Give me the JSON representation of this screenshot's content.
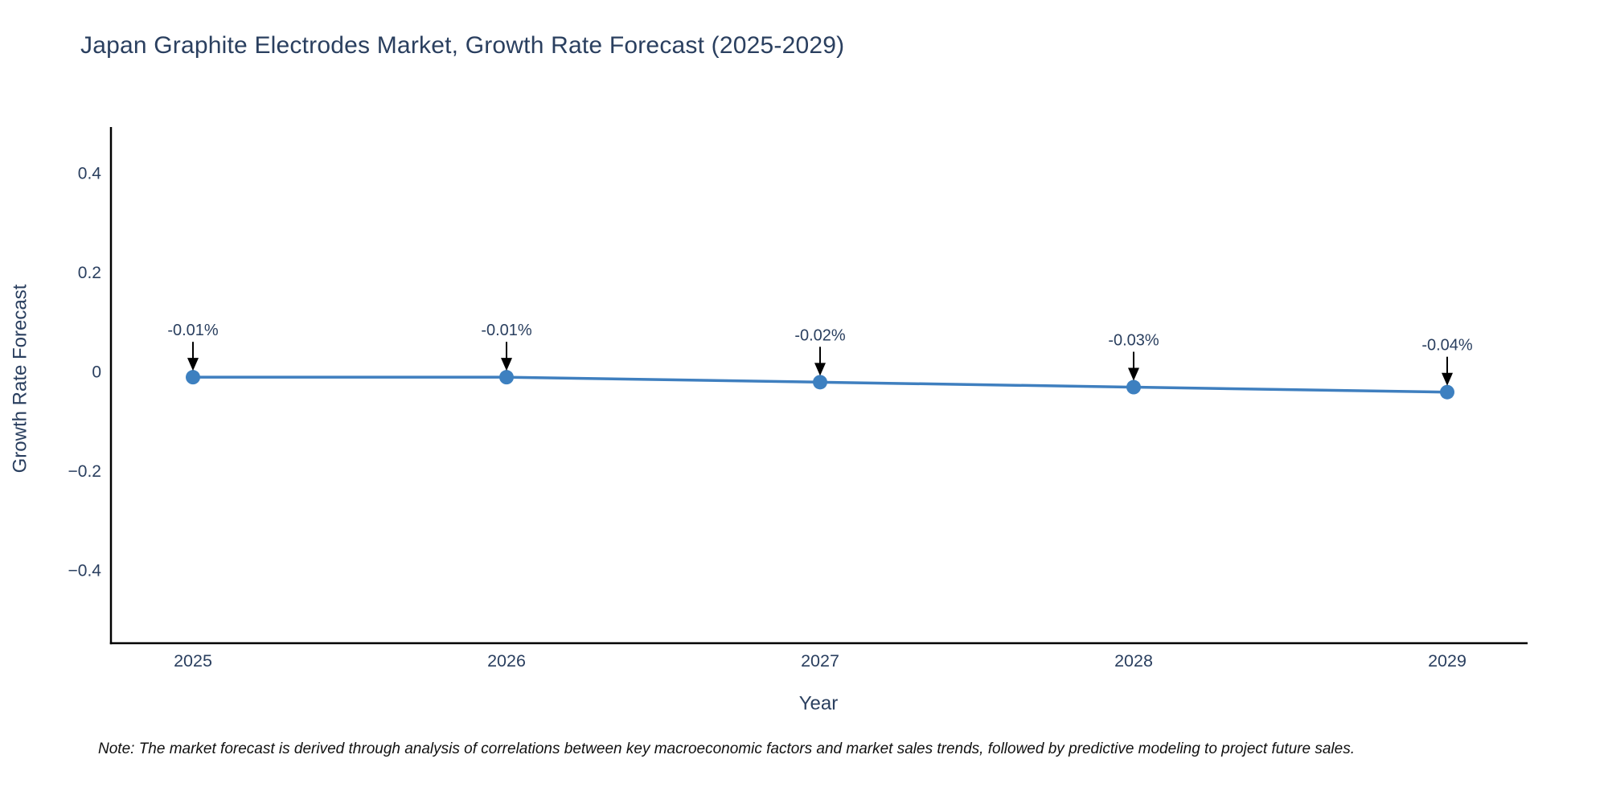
{
  "note": "Note: The market forecast is derived through analysis of correlations between key macroeconomic factors and market sales trends, followed by predictive modeling to project future sales.",
  "chart_data": {
    "type": "line",
    "title": "Japan Graphite Electrodes Market, Growth Rate Forecast (2025-2029)",
    "xlabel": "Year",
    "ylabel": "Growth Rate Forecast",
    "x": [
      2025,
      2026,
      2027,
      2028,
      2029
    ],
    "y": [
      -0.01,
      -0.01,
      -0.02,
      -0.03,
      -0.04
    ],
    "point_labels": [
      "-0.01%",
      "-0.01%",
      "-0.02%",
      "-0.03%",
      "-0.04%"
    ],
    "yticks": [
      {
        "v": 0.4,
        "label": "0.4"
      },
      {
        "v": 0.2,
        "label": "0.2"
      },
      {
        "v": 0.0,
        "label": "0"
      },
      {
        "v": -0.2,
        "label": "−0.2"
      },
      {
        "v": -0.4,
        "label": "−0.4"
      }
    ],
    "ylim": [
      -0.55,
      0.49
    ],
    "grid": false,
    "legend": "none",
    "colors": {
      "line": "#3f7fbf",
      "marker": "#3d80c0",
      "axis_line": "#000000",
      "tick_text": "#2a3f5f",
      "axis_title_text": "#2a3f5f",
      "annotation_text": "#2a3f5f",
      "annotation_arrow": "#000000",
      "title_text": "#2a3f5f"
    }
  }
}
